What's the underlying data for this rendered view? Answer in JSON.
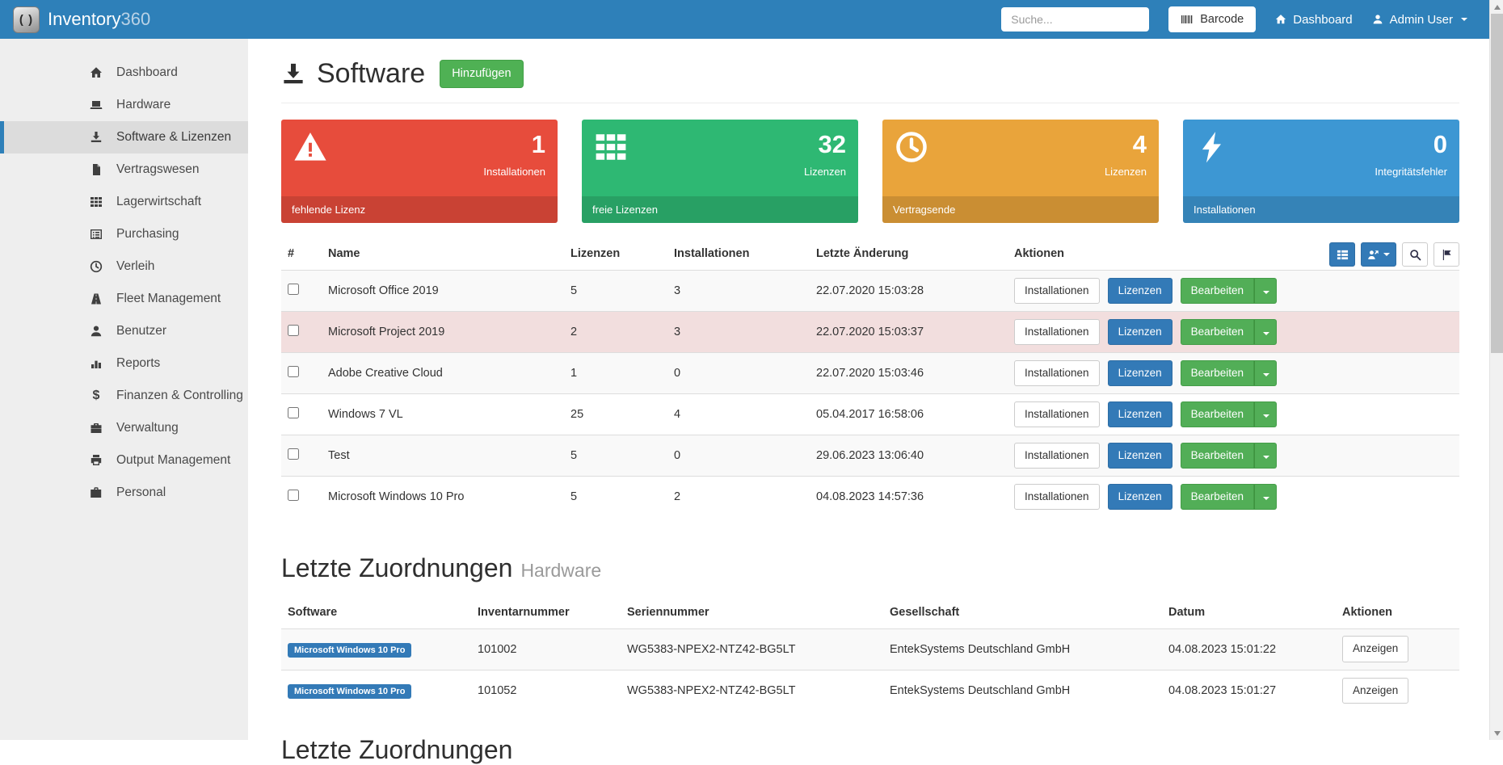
{
  "navbar": {
    "brand": {
      "icon": "brackets",
      "text": "Inventory",
      "suffix": "360"
    },
    "search": {
      "placeholder": "Suche..."
    },
    "barcode_button": {
      "icon": "barcode",
      "label": "Barcode"
    },
    "dashboard_link": {
      "icon": "home",
      "label": "Dashboard"
    },
    "user_menu": {
      "icon": "user",
      "label": "Admin User"
    }
  },
  "sidebar": {
    "items": [
      {
        "label": "Dashboard",
        "icon": "home",
        "active": false
      },
      {
        "label": "Hardware",
        "icon": "laptop",
        "active": false
      },
      {
        "label": "Software & Lizenzen",
        "icon": "download",
        "active": true
      },
      {
        "label": "Vertragswesen",
        "icon": "file",
        "active": false
      },
      {
        "label": "Lagerwirtschaft",
        "icon": "th-grid",
        "active": false
      },
      {
        "label": "Purchasing",
        "icon": "list-alt",
        "active": false
      },
      {
        "label": "Verleih",
        "icon": "clock",
        "active": false
      },
      {
        "label": "Fleet Management",
        "icon": "road",
        "active": false
      },
      {
        "label": "Benutzer",
        "icon": "user",
        "active": false
      },
      {
        "label": "Reports",
        "icon": "bar-chart",
        "active": false
      },
      {
        "label": "Finanzen & Controlling",
        "icon": "dollar",
        "active": false
      },
      {
        "label": "Verwaltung",
        "icon": "briefcase",
        "active": false
      },
      {
        "label": "Output Management",
        "icon": "print",
        "active": false
      },
      {
        "label": "Personal",
        "icon": "suitcase",
        "active": false
      }
    ]
  },
  "page": {
    "title": "Software",
    "title_icon": "download",
    "add_button": "Hinzufügen"
  },
  "stat_cards": [
    {
      "id": "missing-license",
      "icon": "warning-triangle",
      "value": "1",
      "label": "Installationen",
      "footer": "fehlende Lizenz",
      "color": "#e74c3c"
    },
    {
      "id": "free-licenses",
      "icon": "th-grid",
      "value": "32",
      "label": "Lizenzen",
      "footer": "freie Lizenzen",
      "color": "#2eb873"
    },
    {
      "id": "contract-end",
      "icon": "clock",
      "value": "4",
      "label": "Lizenzen",
      "footer": "Vertragsende",
      "color": "#e9a43b"
    },
    {
      "id": "integrity-errors",
      "icon": "bolt",
      "value": "0",
      "label": "Integritätsfehler",
      "footer": "Installationen",
      "color": "#3d97d3"
    }
  ],
  "toolbar": {
    "buttons": [
      {
        "id": "list-view",
        "icon": "th-list",
        "style": "blue",
        "has_caret": false
      },
      {
        "id": "user-export",
        "icon": "user-export",
        "style": "blue",
        "has_caret": true
      },
      {
        "id": "search",
        "icon": "search",
        "style": "default",
        "has_caret": false
      },
      {
        "id": "flag",
        "icon": "flag",
        "style": "default",
        "has_caret": false
      }
    ]
  },
  "software_table": {
    "headers": {
      "num": "#",
      "name": "Name",
      "licenses": "Lizenzen",
      "installations": "Installationen",
      "modified": "Letzte Änderung",
      "actions": "Aktionen"
    },
    "row_buttons": {
      "installations": "Installationen",
      "licenses": "Lizenzen",
      "edit": "Bearbeiten"
    },
    "rows": [
      {
        "name": "Microsoft Office 2019",
        "licenses": "5",
        "installations": "3",
        "modified": "22.07.2020 15:03:28",
        "highlight": false,
        "striped": true
      },
      {
        "name": "Microsoft Project 2019",
        "licenses": "2",
        "installations": "3",
        "modified": "22.07.2020 15:03:37",
        "highlight": true,
        "striped": false
      },
      {
        "name": "Adobe Creative Cloud",
        "licenses": "1",
        "installations": "0",
        "modified": "22.07.2020 15:03:46",
        "highlight": false,
        "striped": true
      },
      {
        "name": "Windows 7 VL",
        "licenses": "25",
        "installations": "4",
        "modified": "05.04.2017 16:58:06",
        "highlight": false,
        "striped": false
      },
      {
        "name": "Test",
        "licenses": "5",
        "installations": "0",
        "modified": "29.06.2023 13:06:40",
        "highlight": false,
        "striped": true
      },
      {
        "name": "Microsoft Windows 10 Pro",
        "licenses": "5",
        "installations": "2",
        "modified": "04.08.2023 14:57:36",
        "highlight": false,
        "striped": false
      }
    ]
  },
  "assignments": {
    "title": "Letzte Zuordnungen",
    "subtitle": "Hardware",
    "headers": {
      "software": "Software",
      "inventory_number": "Inventarnummer",
      "serial_number": "Seriennummer",
      "company": "Gesellschaft",
      "date": "Datum",
      "actions": "Aktionen"
    },
    "view_button": "Anzeigen",
    "rows": [
      {
        "software_badge": "Microsoft Windows 10 Pro",
        "inventory_number": "101002",
        "serial_number": "WG5383-NPEX2-NTZ42-BG5LT",
        "company": "EntekSystems Deutschland GmbH",
        "date": "04.08.2023 15:01:22",
        "striped": true
      },
      {
        "software_badge": "Microsoft Windows 10 Pro",
        "inventory_number": "101052",
        "serial_number": "WG5383-NPEX2-NTZ42-BG5LT",
        "company": "EntekSystems Deutschland GmbH",
        "date": "04.08.2023 15:01:27",
        "striped": false
      }
    ]
  },
  "partial_section": {
    "title": "Letzte Zuordnungen"
  },
  "colors": {
    "navbar_blue": "#2e80b9",
    "primary_blue": "#337ab7",
    "success_green": "#4fb154",
    "danger_row": "#f2dede",
    "card_red": "#e74c3c",
    "card_green": "#2eb873",
    "card_orange": "#e9a43b",
    "card_blue": "#3d97d3"
  }
}
